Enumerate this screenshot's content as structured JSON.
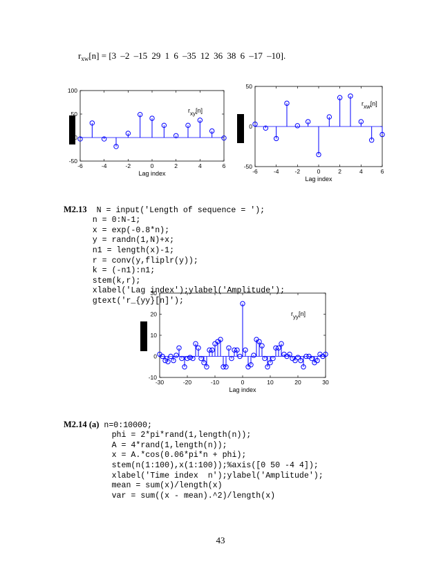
{
  "equation": {
    "lhs": "r",
    "lhs_sub": "xw",
    "lhs_rest": "[n] =",
    "values": "[3   –2   –15   29    1    6   –35   12   36   38    6   –17  –10]."
  },
  "chart_data": [
    {
      "type": "stem",
      "xlabel": "Lag index",
      "annotation": "r",
      "annotation_sub": "xy",
      "annotation_rest": "[n]",
      "xlim": [
        -6,
        6
      ],
      "ylim": [
        -50,
        100
      ],
      "xticks": [
        -6,
        -4,
        -2,
        0,
        2,
        4,
        6
      ],
      "yticks": [
        -50,
        0,
        50,
        100
      ],
      "x": [
        -6,
        -5,
        -4,
        -3,
        -2,
        -1,
        0,
        1,
        2,
        3,
        4,
        5,
        6
      ],
      "y": [
        -3,
        31,
        -3,
        -19,
        9,
        49,
        41,
        26,
        4,
        26,
        37,
        14,
        -1
      ]
    },
    {
      "type": "stem",
      "xlabel": "Lag index",
      "annotation": "r",
      "annotation_sub": "xw",
      "annotation_rest": "[n]",
      "xlim": [
        -6,
        6
      ],
      "ylim": [
        -50,
        50
      ],
      "xticks": [
        -6,
        -4,
        -2,
        0,
        2,
        4,
        6
      ],
      "yticks": [
        -50,
        0,
        50
      ],
      "x": [
        -6,
        -5,
        -4,
        -3,
        -2,
        -1,
        0,
        1,
        2,
        3,
        4,
        5,
        6
      ],
      "y": [
        3,
        -2,
        -15,
        29,
        1,
        6,
        -35,
        12,
        36,
        38,
        6,
        -17,
        -10
      ]
    },
    {
      "type": "stem",
      "xlabel": "Lag index",
      "annotation": "r",
      "annotation_sub": "yy",
      "annotation_rest": "[n]",
      "xlim": [
        -30,
        30
      ],
      "ylim": [
        -10,
        30
      ],
      "xticks": [
        -30,
        -20,
        -10,
        0,
        10,
        20,
        30
      ],
      "yticks": [
        -10,
        0,
        10,
        20,
        30
      ],
      "x": [
        -30,
        -29,
        -28,
        -27,
        -26,
        -25,
        -24,
        -23,
        -22,
        -21,
        -20,
        -19,
        -18,
        -17,
        -16,
        -15,
        -14,
        -13,
        -12,
        -11,
        -10,
        -9,
        -8,
        -7,
        -6,
        -5,
        -4,
        -3,
        -2,
        -1,
        0,
        1,
        2,
        3,
        4,
        5,
        6,
        7,
        8,
        9,
        10,
        11,
        12,
        13,
        14,
        15,
        16,
        17,
        18,
        19,
        20,
        21,
        22,
        23,
        24,
        25,
        26,
        27,
        28,
        29,
        30
      ],
      "y": [
        1,
        0,
        -2,
        -2.5,
        0,
        -2,
        0.5,
        4,
        -1,
        -5,
        -1,
        -0.5,
        -1,
        6,
        4,
        -1,
        -3,
        -5,
        3,
        3,
        6,
        7,
        8,
        -5,
        -5,
        4,
        -1,
        3,
        3,
        0,
        25,
        3,
        -5,
        -4,
        0.5,
        8,
        7,
        5,
        -1,
        -5,
        -3,
        -1,
        4,
        4,
        6,
        1,
        0,
        1,
        -1,
        -2,
        -0.5,
        -2,
        -5,
        0,
        0,
        -1,
        -3,
        -2,
        1,
        0,
        1
      ]
    }
  ],
  "code_m213": {
    "label": "M2.13",
    "lines": [
      "N = input('Length of sequence = ');",
      "n = 0:N-1;",
      "x = exp(-0.8*n);",
      "y = randn(1,N)+x;",
      "n1 = length(x)-1;",
      "r = conv(y,fliplr(y));",
      "k = (-n1):n1;",
      "stem(k,r);",
      "xlabel('Lag index');ylabel('Amplitude');",
      "gtext('r_{yy}[n]');"
    ]
  },
  "code_m214": {
    "label": "M2.14",
    "part": "(a)",
    "lines": [
      "n=0:10000;",
      "phi = 2*pi*rand(1,length(n));",
      "A = 4*rand(1,length(n));",
      "x = A.*cos(0.06*pi*n + phi);",
      "stem(n(1:100),x(1:100));%axis([0 50 -4 4]);",
      "xlabel('Time index  n');ylabel('Amplitude');",
      "mean = sum(x)/length(x)",
      "var = sum((x - mean).^2)/length(x)"
    ]
  },
  "page_number": "43",
  "colors": {
    "stem": "#0000ff",
    "axis": "#000000"
  }
}
